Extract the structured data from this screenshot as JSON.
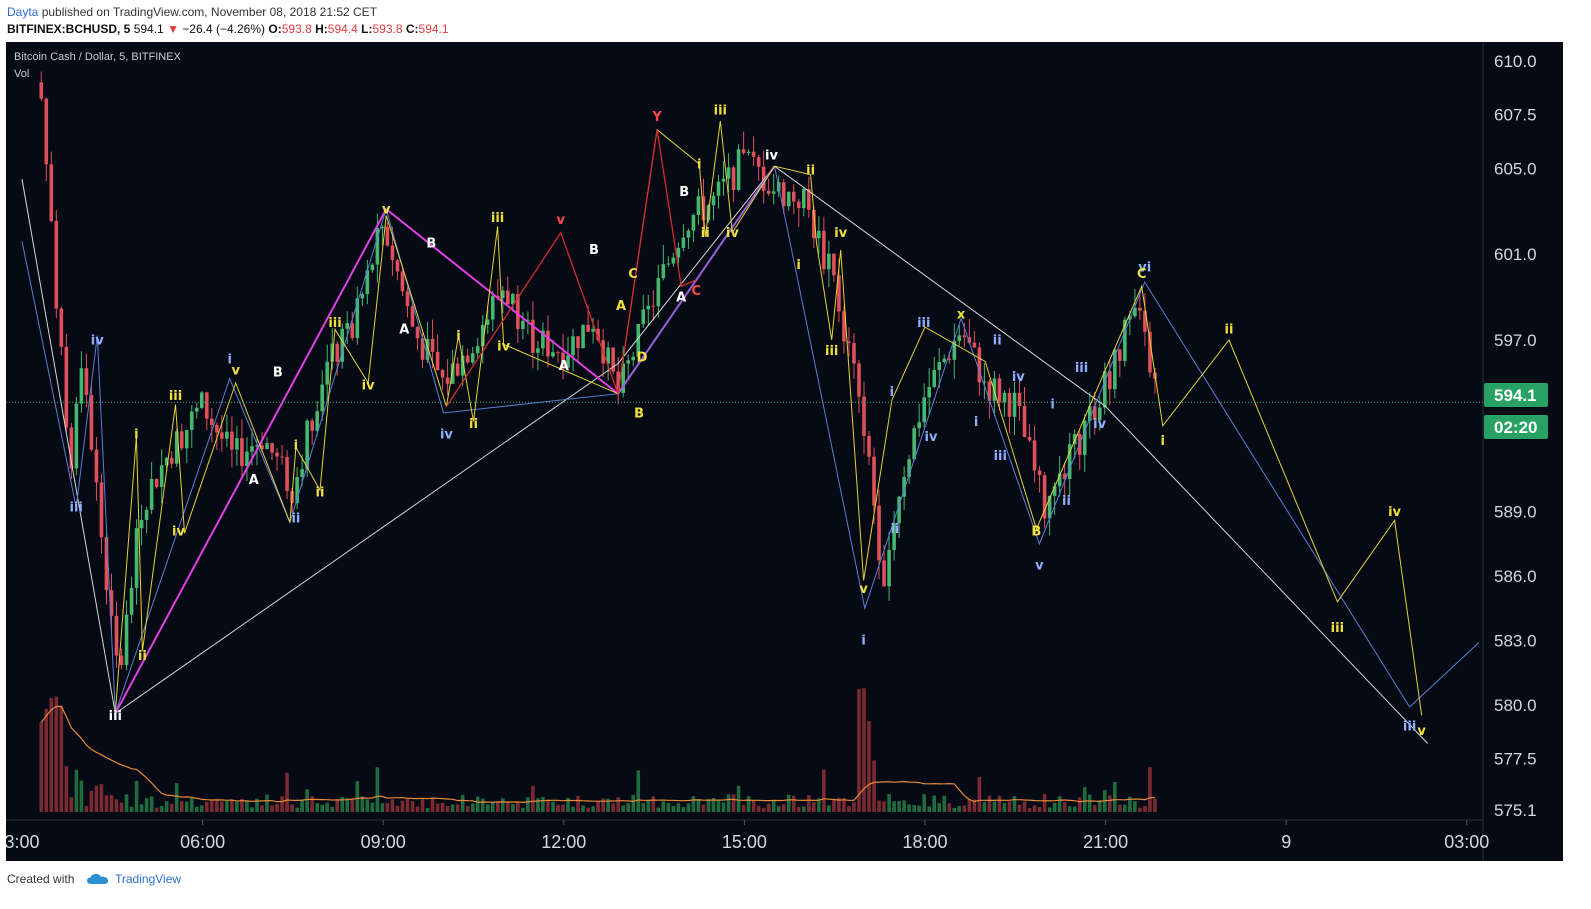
{
  "header": {
    "author": "Dayta",
    "published": "published on TradingView.com, November 08, 2018 21:52 CET",
    "symbol": "BITFINEX:BCHUSD, 5",
    "price": "594.1",
    "change": "−26.4 (−4.26%)",
    "o_label": "O:",
    "o_val": "593.8",
    "h_label": "H:",
    "h_val": "594.4",
    "l_label": "L:",
    "l_val": "593.8",
    "c_label": "C:",
    "c_val": "594.1"
  },
  "legend": {
    "title": "Bitcoin Cash / Dollar, 5, BITFINEX",
    "indicator": "Vol"
  },
  "badges": {
    "last_price": "594.1",
    "countdown": "02:20"
  },
  "footer": {
    "created_with": "Created with",
    "brand": "TradingView"
  },
  "colors": {
    "background": "#050a14",
    "up": "#45b86f",
    "down": "#e0505a",
    "magenta": "#e23fe4",
    "white_line": "#d8d8d8",
    "blue_line": "#5b7fd6",
    "yellow_line": "#e8d23a",
    "red_line": "#d42c2c",
    "badge": "#28a264"
  },
  "chart_data": {
    "type": "candlestick",
    "y_ticks": [
      "610.0",
      "607.5",
      "605.0",
      "601.0",
      "597.0",
      "594.1",
      "589.0",
      "586.0",
      "583.0",
      "580.0",
      "577.5",
      "575.1"
    ],
    "y_tick_values": [
      610.0,
      607.5,
      605.0,
      601.0,
      597.0,
      594.1,
      589.0,
      586.0,
      583.0,
      580.0,
      577.5,
      575.1
    ],
    "x_ticks": [
      "3:00",
      "06:00",
      "09:00",
      "12:00",
      "15:00",
      "18:00",
      "21:00",
      "9",
      "03:00"
    ],
    "price_path_hours": [
      3.3,
      3.8,
      4.0,
      4.35,
      4.6,
      5.0,
      5.5,
      6.0,
      6.5,
      7.0,
      7.5,
      8.0,
      8.5,
      9.0,
      9.5,
      10.0,
      10.5,
      11.0,
      11.5,
      12.0,
      12.5,
      12.9,
      13.5,
      14.0,
      14.5,
      15.0,
      15.5,
      16.0,
      16.5,
      17.0,
      17.3,
      17.6,
      18.0,
      18.6,
      19.0,
      19.5,
      20.0,
      20.5,
      21.0,
      21.5,
      21.9
    ],
    "price_path_values": [
      609.0,
      590.5,
      596.5,
      587.0,
      581.0,
      589.5,
      592.0,
      594.0,
      591.5,
      592.5,
      590.0,
      595.5,
      597.5,
      602.5,
      597.5,
      595.0,
      597.0,
      599.5,
      597.0,
      596.5,
      598.0,
      594.5,
      599.0,
      602.5,
      603.5,
      605.5,
      604.0,
      603.5,
      599.5,
      593.0,
      586.0,
      590.5,
      594.5,
      597.5,
      595.0,
      594.0,
      589.0,
      592.0,
      595.0,
      598.5,
      594.1
    ],
    "wave_labels": [
      {
        "t": "iii",
        "x": 3.9,
        "y": 589.0,
        "c": "blue"
      },
      {
        "t": "iv",
        "x": 4.25,
        "y": 596.8,
        "c": "blue"
      },
      {
        "t": "iii",
        "x": 4.55,
        "y": 579.3,
        "c": "white"
      },
      {
        "t": "i",
        "x": 4.9,
        "y": 592.4,
        "c": "yellow"
      },
      {
        "t": "ii",
        "x": 5.0,
        "y": 582.1,
        "c": "yellow"
      },
      {
        "t": "iii",
        "x": 5.55,
        "y": 594.2,
        "c": "yellow"
      },
      {
        "t": "iv",
        "x": 5.6,
        "y": 587.9,
        "c": "yellow"
      },
      {
        "t": "v",
        "x": 6.55,
        "y": 595.4,
        "c": "yellow"
      },
      {
        "t": "i",
        "x": 6.45,
        "y": 595.9,
        "c": "blue"
      },
      {
        "t": "A",
        "x": 6.85,
        "y": 590.3,
        "c": "white"
      },
      {
        "t": "B",
        "x": 7.25,
        "y": 595.3,
        "c": "white"
      },
      {
        "t": "i",
        "x": 7.55,
        "y": 591.9,
        "c": "yellow"
      },
      {
        "t": "ii",
        "x": 7.55,
        "y": 588.5,
        "c": "blue"
      },
      {
        "t": "ii",
        "x": 7.95,
        "y": 589.7,
        "c": "yellow"
      },
      {
        "t": "iii",
        "x": 8.2,
        "y": 597.6,
        "c": "yellow"
      },
      {
        "t": "iv",
        "x": 8.75,
        "y": 594.7,
        "c": "yellow"
      },
      {
        "t": "v",
        "x": 9.05,
        "y": 602.9,
        "c": "yellow"
      },
      {
        "t": "A",
        "x": 9.35,
        "y": 597.3,
        "c": "white"
      },
      {
        "t": "B",
        "x": 9.8,
        "y": 601.3,
        "c": "white"
      },
      {
        "t": "iv",
        "x": 10.05,
        "y": 592.4,
        "c": "blue"
      },
      {
        "t": "ii",
        "x": 10.5,
        "y": 592.9,
        "c": "yellow"
      },
      {
        "t": "i",
        "x": 10.25,
        "y": 597.0,
        "c": "yellow"
      },
      {
        "t": "iii",
        "x": 10.9,
        "y": 602.5,
        "c": "yellow"
      },
      {
        "t": "iv",
        "x": 11.0,
        "y": 596.5,
        "c": "yellow"
      },
      {
        "t": "v",
        "x": 11.95,
        "y": 602.4,
        "c": "red"
      },
      {
        "t": "A",
        "x": 12.0,
        "y": 595.6,
        "c": "white"
      },
      {
        "t": "B",
        "x": 12.5,
        "y": 601.0,
        "c": "white"
      },
      {
        "t": "A",
        "x": 12.95,
        "y": 598.4,
        "c": "yellow"
      },
      {
        "t": "C",
        "x": 13.15,
        "y": 599.9,
        "c": "yellow"
      },
      {
        "t": "B",
        "x": 13.25,
        "y": 593.4,
        "c": "yellow"
      },
      {
        "t": "D",
        "x": 13.3,
        "y": 596.0,
        "c": "yellow"
      },
      {
        "t": "Y",
        "x": 13.55,
        "y": 607.2,
        "c": "red"
      },
      {
        "t": "B",
        "x": 14.0,
        "y": 603.7,
        "c": "white"
      },
      {
        "t": "A",
        "x": 13.95,
        "y": 598.8,
        "c": "white"
      },
      {
        "t": "C",
        "x": 14.2,
        "y": 599.1,
        "c": "red"
      },
      {
        "t": "i",
        "x": 14.25,
        "y": 605.0,
        "c": "yellow"
      },
      {
        "t": "ii",
        "x": 14.35,
        "y": 601.8,
        "c": "yellow"
      },
      {
        "t": "iii",
        "x": 14.6,
        "y": 607.5,
        "c": "yellow"
      },
      {
        "t": "iv",
        "x": 14.8,
        "y": 601.8,
        "c": "yellow"
      },
      {
        "t": "iv",
        "x": 15.45,
        "y": 605.4,
        "c": "white"
      },
      {
        "t": "ii",
        "x": 16.1,
        "y": 604.7,
        "c": "yellow"
      },
      {
        "t": "i",
        "x": 15.9,
        "y": 600.3,
        "c": "yellow"
      },
      {
        "t": "iv",
        "x": 16.6,
        "y": 601.8,
        "c": "yellow"
      },
      {
        "t": "iii",
        "x": 16.45,
        "y": 596.3,
        "c": "yellow"
      },
      {
        "t": "v",
        "x": 16.98,
        "y": 585.2,
        "c": "yellow"
      },
      {
        "t": "i",
        "x": 16.98,
        "y": 582.8,
        "c": "blue"
      },
      {
        "t": "i",
        "x": 17.45,
        "y": 594.4,
        "c": "blue"
      },
      {
        "t": "ii",
        "x": 17.5,
        "y": 588.0,
        "c": "blue"
      },
      {
        "t": "iii",
        "x": 17.98,
        "y": 597.6,
        "c": "blue"
      },
      {
        "t": "iv",
        "x": 18.1,
        "y": 592.3,
        "c": "blue"
      },
      {
        "t": "x",
        "x": 18.6,
        "y": 598.0,
        "c": "yellow"
      },
      {
        "t": "i",
        "x": 18.85,
        "y": 593.0,
        "c": "blue"
      },
      {
        "t": "ii",
        "x": 19.2,
        "y": 596.8,
        "c": "blue"
      },
      {
        "t": "iii",
        "x": 19.25,
        "y": 591.4,
        "c": "blue"
      },
      {
        "t": "iv",
        "x": 19.55,
        "y": 595.1,
        "c": "blue"
      },
      {
        "t": "B",
        "x": 19.85,
        "y": 587.9,
        "c": "yellow"
      },
      {
        "t": "v",
        "x": 19.9,
        "y": 586.3,
        "c": "blue"
      },
      {
        "t": "i",
        "x": 20.12,
        "y": 593.8,
        "c": "blue"
      },
      {
        "t": "ii",
        "x": 20.35,
        "y": 589.3,
        "c": "blue"
      },
      {
        "t": "iii",
        "x": 20.6,
        "y": 595.5,
        "c": "blue"
      },
      {
        "t": "iv",
        "x": 20.9,
        "y": 592.9,
        "c": "blue"
      },
      {
        "t": "vi",
        "x": 21.65,
        "y": 600.2,
        "c": "blue"
      },
      {
        "t": "C",
        "x": 21.6,
        "y": 599.9,
        "c": "yellow"
      },
      {
        "t": "i",
        "x": 21.95,
        "y": 592.1,
        "c": "yellow"
      },
      {
        "t": "ii",
        "x": 23.05,
        "y": 597.3,
        "c": "yellow"
      },
      {
        "t": "iii",
        "x": 24.85,
        "y": 583.4,
        "c": "yellow"
      },
      {
        "t": "iv",
        "x": 25.8,
        "y": 588.8,
        "c": "yellow"
      },
      {
        "t": "iii",
        "x": 26.05,
        "y": 578.8,
        "c": "blue"
      },
      {
        "t": "v",
        "x": 26.25,
        "y": 578.6,
        "c": "yellow"
      }
    ]
  }
}
